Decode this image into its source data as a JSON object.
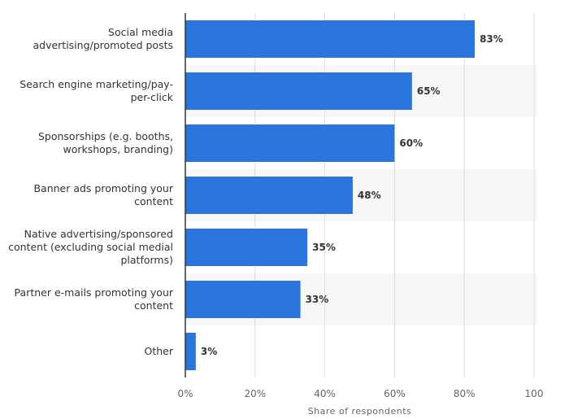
{
  "colors": {
    "bar": "#2a74dd",
    "band": "#f7f7f7",
    "grid": "#dcdcdc",
    "axis": "#333333"
  },
  "chart_data": {
    "type": "bar",
    "orientation": "horizontal",
    "categories": [
      [
        "Social media",
        "advertising/promoted posts"
      ],
      [
        "Search engine marketing/pay-",
        "per-click"
      ],
      [
        "Sponsorships (e.g. booths,",
        "workshops, branding)"
      ],
      [
        "Banner ads promoting your",
        "content"
      ],
      [
        "Native advertising/sponsored",
        "content (excluding social medial",
        "platforms)"
      ],
      [
        "Partner e-mails promoting your",
        "content"
      ],
      [
        "Other"
      ]
    ],
    "values": [
      83,
      65,
      60,
      48,
      35,
      33,
      3
    ],
    "value_labels": [
      "83%",
      "65%",
      "60%",
      "48%",
      "35%",
      "33%",
      "3%"
    ],
    "xticks": [
      "0%",
      "20%",
      "40%",
      "60%",
      "80%",
      "100"
    ],
    "xlim": [
      0,
      100
    ],
    "xlabel": "Share of respondents",
    "ylabel": "",
    "title": "",
    "grid": true,
    "legend": "none"
  }
}
